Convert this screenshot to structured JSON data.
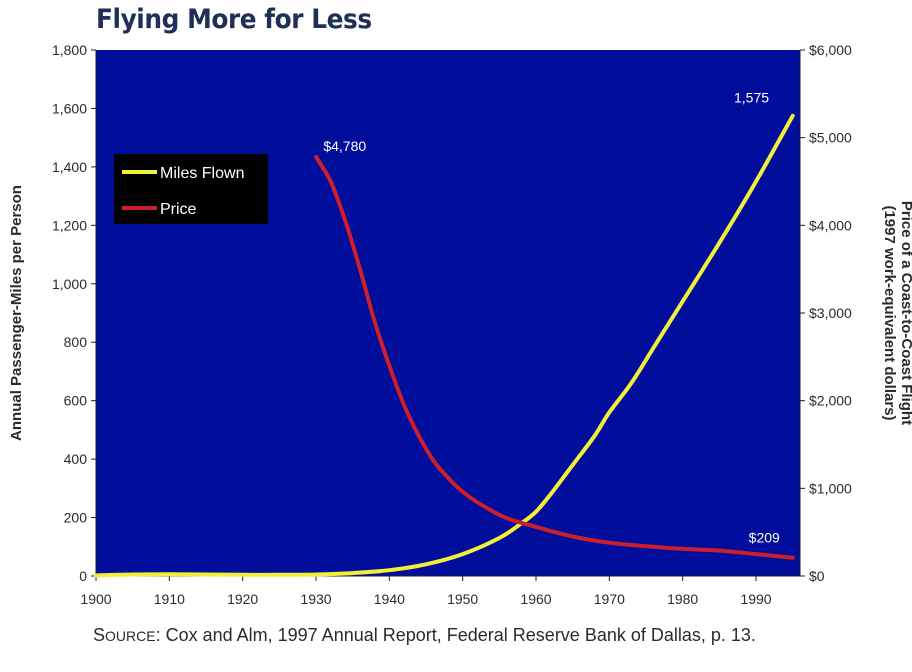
{
  "title": "Flying More for Less",
  "source": {
    "label_first": "S",
    "label_rest": "OURCE",
    "text": ": Cox and Alm, 1997 Annual Report, Federal Reserve Bank of Dallas, p. 13."
  },
  "colors": {
    "plot_background": "#000e9b",
    "miles_line": "#f2ef38",
    "price_line": "#cc1f2a",
    "legend_background": "#000000",
    "axis_text": "#2b2b2b"
  },
  "chart_data": {
    "type": "line",
    "xlabel": "",
    "ylabel": "Annual Passenger-Miles per Person",
    "y2label": "Price of a Coast-to-Coast Flight",
    "y2label_sub": "(1997 work-equivalent dollars)",
    "xlim": [
      1900,
      1996
    ],
    "ylim": [
      0,
      1800
    ],
    "y2lim": [
      0,
      6000
    ],
    "x_ticks": [
      1900,
      1910,
      1920,
      1930,
      1940,
      1950,
      1960,
      1970,
      1980,
      1990
    ],
    "x_tick_labels": [
      "1900",
      "1910",
      "1920",
      "1930",
      "1940",
      "1950",
      "1960",
      "1970",
      "1980",
      "1990"
    ],
    "y_ticks": [
      0,
      200,
      400,
      600,
      800,
      1000,
      1200,
      1400,
      1600,
      1800
    ],
    "y_tick_labels": [
      "0",
      "200",
      "400",
      "600",
      "800",
      "1,000",
      "1,200",
      "1,400",
      "1,600",
      "1,800"
    ],
    "y2_ticks": [
      0,
      1000,
      2000,
      3000,
      4000,
      5000,
      6000
    ],
    "y2_tick_labels": [
      "$0",
      "$1,000",
      "$2,000",
      "$3,000",
      "$4,000",
      "$5,000",
      "$6,000"
    ],
    "grid": false,
    "legend_position": "top-left",
    "series": [
      {
        "name": "Miles Flown",
        "axis": "left",
        "x": [
          1900,
          1905,
          1910,
          1915,
          1920,
          1925,
          1930,
          1935,
          1940,
          1945,
          1950,
          1955,
          1958,
          1960,
          1962,
          1965,
          1968,
          1970,
          1973,
          1976,
          1980,
          1985,
          1990,
          1995
        ],
        "y": [
          2,
          5,
          6,
          5,
          4,
          4,
          5,
          10,
          20,
          40,
          75,
          130,
          180,
          220,
          280,
          380,
          480,
          560,
          660,
          780,
          940,
          1140,
          1350,
          1575
        ]
      },
      {
        "name": "Price",
        "axis": "right",
        "x": [
          1930,
          1932,
          1934,
          1936,
          1938,
          1940,
          1942,
          1944,
          1946,
          1948,
          1950,
          1953,
          1956,
          1960,
          1965,
          1970,
          1975,
          1980,
          1985,
          1990,
          1995
        ],
        "y": [
          4780,
          4500,
          4050,
          3500,
          2900,
          2400,
          1950,
          1600,
          1320,
          1120,
          960,
          790,
          660,
          560,
          450,
          380,
          340,
          310,
          290,
          250,
          209
        ]
      }
    ],
    "annotations": [
      {
        "text": "$4,780",
        "x": 1931,
        "y": 4850,
        "axis": "right"
      },
      {
        "text": "1,575",
        "x": 1987,
        "y": 1620,
        "axis": "left"
      },
      {
        "text": "$209",
        "x": 1989,
        "y": 380,
        "axis": "right"
      }
    ]
  }
}
